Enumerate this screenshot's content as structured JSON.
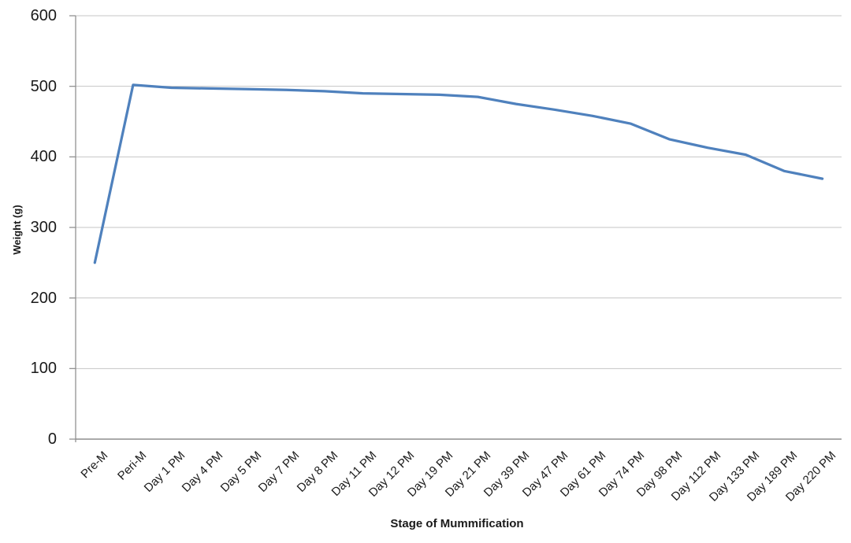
{
  "chart_data": {
    "type": "line",
    "title": "",
    "xlabel": "Stage of Mummification",
    "ylabel": "Weight (g)",
    "categories": [
      "Pre-M",
      "Peri-M",
      "Day 1 PM",
      "Day 4 PM",
      "Day 5 PM",
      "Day 7 PM",
      "Day 8 PM",
      "Day 11 PM",
      "Day 12 PM",
      "Day 19 PM",
      "Day 21 PM",
      "Day 39 PM",
      "Day 47 PM",
      "Day 61 PM",
      "Day 74 PM",
      "Day 98 PM",
      "Day 112 PM",
      "Day 133 PM",
      "Day 189 PM",
      "Day 220 PM"
    ],
    "series": [
      {
        "name": "Weight (g)",
        "values": [
          250,
          502,
          498,
          497,
          496,
          495,
          493,
          490,
          489,
          488,
          485,
          475,
          467,
          458,
          447,
          425,
          413,
          403,
          380,
          369
        ]
      }
    ],
    "ylim": [
      0,
      600
    ],
    "yticks": [
      0,
      100,
      200,
      300,
      400,
      500,
      600
    ],
    "grid": "horizontal-only",
    "legend": "none",
    "colors": {
      "line": "#4F81BD",
      "gridline": "#C6C6C6",
      "axis": "#8E8E8E",
      "text": "#1a1a1a"
    }
  }
}
